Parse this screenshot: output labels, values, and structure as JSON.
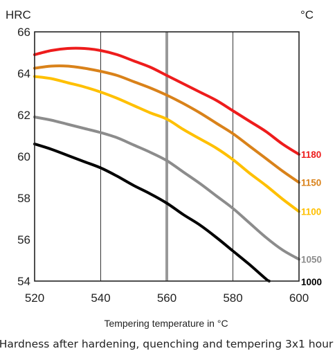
{
  "chart_data": {
    "type": "line",
    "ylabel": "HRC",
    "legend_title": "°C",
    "xlabel": "Tempering temperature in °C",
    "caption": "Hardness after hardening, quenching and tempering  3x1 hour",
    "xlim": [
      520,
      600
    ],
    "ylim": [
      54,
      66
    ],
    "x_ticks": [
      520,
      540,
      560,
      580,
      600
    ],
    "y_ticks": [
      54,
      56,
      58,
      60,
      62,
      64,
      66
    ],
    "grid": "vertical",
    "marker_x": 560,
    "marker_color": "#999999",
    "series": [
      {
        "name": "1180",
        "color": "#ee1c1c",
        "x": [
          520,
          525,
          530,
          535,
          540,
          545,
          550,
          555,
          560,
          565,
          570,
          575,
          580,
          585,
          590,
          595,
          600
        ],
        "y": [
          64.9,
          65.1,
          65.2,
          65.2,
          65.1,
          64.9,
          64.6,
          64.3,
          63.9,
          63.5,
          63.1,
          62.7,
          62.2,
          61.7,
          61.2,
          60.6,
          60.1
        ]
      },
      {
        "name": "1150",
        "color": "#d9821a",
        "x": [
          520,
          525,
          530,
          535,
          540,
          545,
          550,
          555,
          560,
          565,
          570,
          575,
          580,
          585,
          590,
          595,
          600
        ],
        "y": [
          64.25,
          64.35,
          64.35,
          64.25,
          64.1,
          63.9,
          63.6,
          63.3,
          62.95,
          62.55,
          62.1,
          61.6,
          61.1,
          60.5,
          59.9,
          59.3,
          58.75
        ]
      },
      {
        "name": "1100",
        "color": "#ffc000",
        "x": [
          520,
          525,
          530,
          535,
          540,
          545,
          550,
          555,
          560,
          565,
          570,
          575,
          580,
          585,
          590,
          595,
          600
        ],
        "y": [
          63.85,
          63.75,
          63.55,
          63.35,
          63.1,
          62.8,
          62.45,
          62.1,
          61.8,
          61.3,
          60.85,
          60.4,
          59.85,
          59.2,
          58.6,
          57.95,
          57.35
        ]
      },
      {
        "name": "1050",
        "color": "#8c8c8c",
        "x": [
          520,
          525,
          530,
          535,
          540,
          545,
          550,
          555,
          560,
          565,
          570,
          575,
          580,
          585,
          590,
          595,
          600
        ],
        "y": [
          61.9,
          61.75,
          61.55,
          61.35,
          61.15,
          60.9,
          60.55,
          60.2,
          59.8,
          59.25,
          58.7,
          58.1,
          57.5,
          56.8,
          56.1,
          55.5,
          55.05
        ]
      },
      {
        "name": "1000",
        "color": "#000000",
        "x": [
          520,
          525,
          530,
          535,
          540,
          545,
          550,
          555,
          560,
          565,
          570,
          575,
          580,
          585,
          590,
          591
        ],
        "y": [
          60.6,
          60.35,
          60.05,
          59.75,
          59.45,
          59.05,
          58.6,
          58.2,
          57.75,
          57.2,
          56.7,
          56.1,
          55.45,
          54.8,
          54.1,
          54.0
        ]
      }
    ]
  }
}
